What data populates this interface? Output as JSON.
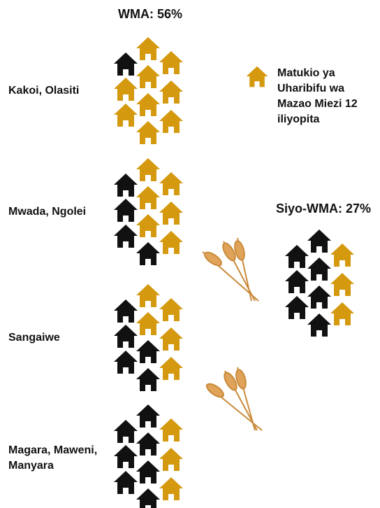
{
  "chart_data": [
    {
      "type": "pictogram",
      "title": "WMA: 56%",
      "categories": [
        "Kakoi, Olasiti",
        "Mwada, Ngolei",
        "Sangaiwe",
        "Magara, Maweni, Manyara"
      ],
      "series": [
        {
          "name": "Matukio ya Uharibifu wa Mazao Miezi 12 iliyopita",
          "color": "#d4990f",
          "values": [
            9,
            6,
            5,
            3
          ]
        },
        {
          "color": "#111111",
          "values": [
            1,
            4,
            5,
            7
          ]
        }
      ]
    },
    {
      "type": "pictogram",
      "title": "Siyo-WMA: 27%",
      "series": [
        {
          "color": "#d4990f",
          "values": [
            3
          ]
        },
        {
          "color": "#111111",
          "values": [
            7
          ]
        }
      ]
    }
  ]
}
